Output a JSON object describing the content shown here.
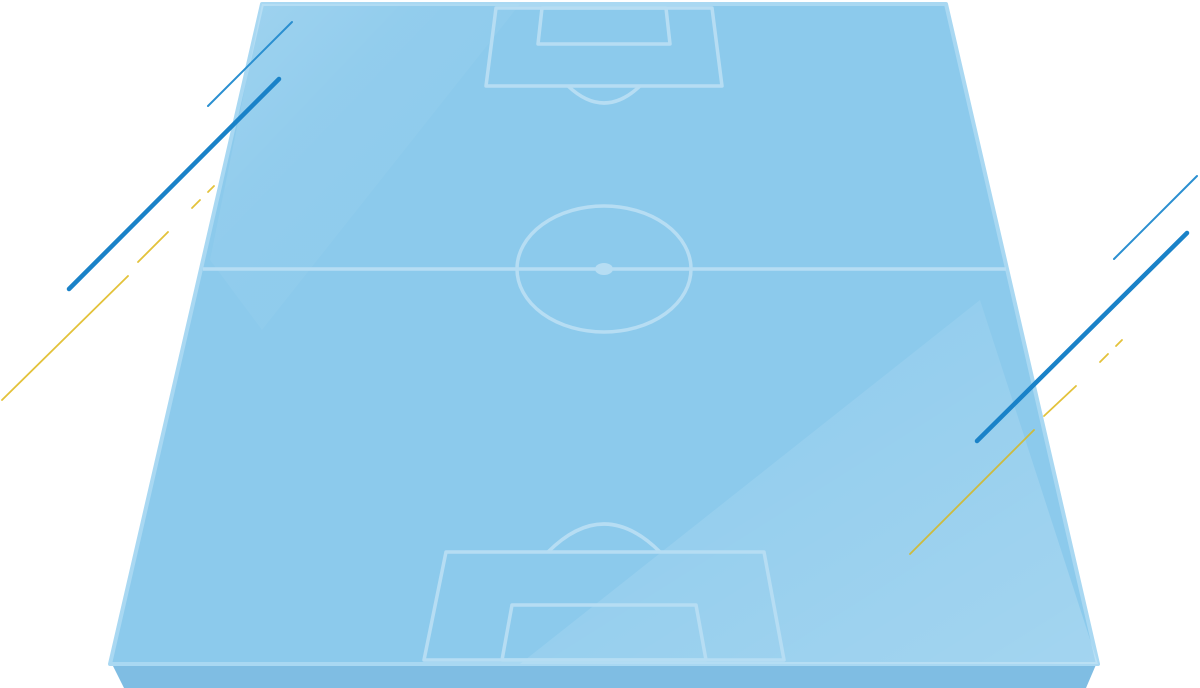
{
  "colors": {
    "background": "#ffffff",
    "pitch_fill": "#8ccaec",
    "pitch_edge": "#a9d8f2",
    "pitch_side": "#7fbde3",
    "pitch_lines": "#b6ddf3",
    "streak_blue": "#1a82c8",
    "streak_blue_thin": "#2a8fd0",
    "streak_yellow": "#e3c23a"
  },
  "icons": {
    "pitch": "soccer-field-illustration"
  }
}
